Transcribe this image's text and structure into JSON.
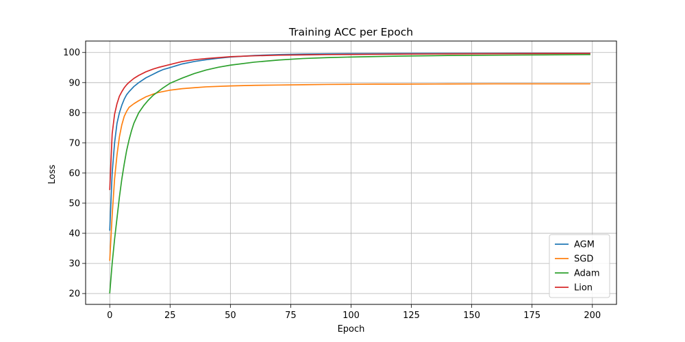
{
  "chart_data": {
    "type": "line",
    "title": "Training ACC per Epoch",
    "xlabel": "Epoch",
    "ylabel": "Loss",
    "xlim": [
      -10,
      210
    ],
    "ylim": [
      16.4,
      103.8
    ],
    "xticks": [
      0,
      25,
      50,
      75,
      100,
      125,
      150,
      175,
      200
    ],
    "yticks": [
      20,
      30,
      40,
      50,
      60,
      70,
      80,
      90,
      100
    ],
    "grid": true,
    "legend_position": "lower-right",
    "series": [
      {
        "name": "AGM",
        "color": "#1f77b4",
        "x": [
          0,
          1,
          2,
          3,
          4,
          5,
          6,
          7,
          8,
          10,
          12,
          15,
          18,
          20,
          22,
          25,
          30,
          35,
          40,
          45,
          50,
          60,
          70,
          80,
          90,
          100,
          120,
          140,
          160,
          180,
          199
        ],
        "y": [
          41,
          60,
          70,
          76.5,
          80,
          82.5,
          84.5,
          86,
          87,
          88.7,
          90,
          91.6,
          92.8,
          93.6,
          94.3,
          95,
          96.2,
          97,
          97.6,
          98.1,
          98.5,
          99,
          99.3,
          99.45,
          99.55,
          99.6,
          99.65,
          99.7,
          99.72,
          99.75,
          99.75
        ]
      },
      {
        "name": "SGD",
        "color": "#ff7f0e",
        "x": [
          0,
          1,
          2,
          3,
          4,
          5,
          6,
          7,
          8,
          10,
          12,
          15,
          18,
          20,
          25,
          30,
          35,
          40,
          50,
          60,
          70,
          80,
          90,
          100,
          110,
          120,
          140,
          160,
          180,
          199
        ],
        "y": [
          31,
          46,
          58,
          66,
          72,
          76,
          78.8,
          80.5,
          81.8,
          83,
          84,
          85.3,
          86.2,
          86.7,
          87.5,
          88,
          88.3,
          88.6,
          88.9,
          89.1,
          89.2,
          89.3,
          89.4,
          89.45,
          89.5,
          89.5,
          89.55,
          89.6,
          89.6,
          89.6
        ]
      },
      {
        "name": "Adam",
        "color": "#2ca02c",
        "x": [
          0,
          1,
          2,
          3,
          4,
          5,
          6,
          7,
          8,
          9,
          10,
          12,
          14,
          16,
          18,
          20,
          22,
          25,
          30,
          35,
          40,
          45,
          50,
          60,
          70,
          80,
          90,
          100,
          120,
          140,
          160,
          180,
          199
        ],
        "y": [
          20.2,
          30,
          38,
          45,
          52,
          58,
          63,
          67.5,
          71,
          74,
          76.5,
          80,
          82.3,
          84.2,
          85.8,
          87,
          88.2,
          89.8,
          91.5,
          93,
          94.2,
          95.1,
          95.8,
          96.8,
          97.5,
          98,
          98.3,
          98.5,
          98.8,
          99,
          99.1,
          99.2,
          99.3
        ]
      },
      {
        "name": "Lion",
        "color": "#d62728",
        "x": [
          0,
          1,
          2,
          3,
          4,
          5,
          6,
          7,
          8,
          10,
          12,
          15,
          18,
          20,
          25,
          30,
          35,
          40,
          50,
          60,
          70,
          80,
          90,
          100,
          120,
          140,
          160,
          180,
          199
        ],
        "y": [
          54.5,
          73,
          79.5,
          83,
          85.5,
          87,
          88.3,
          89.3,
          90.1,
          91.4,
          92.4,
          93.6,
          94.5,
          95,
          96,
          97,
          97.6,
          98,
          98.6,
          98.9,
          99.1,
          99.2,
          99.3,
          99.35,
          99.45,
          99.55,
          99.6,
          99.65,
          99.7
        ]
      }
    ]
  }
}
